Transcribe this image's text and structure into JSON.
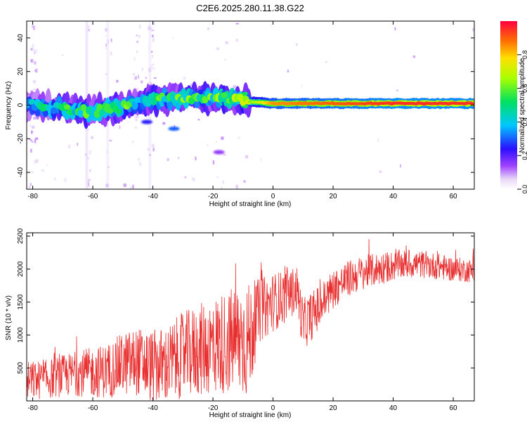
{
  "title": "C2E6.2025.280.11.38.G22",
  "chart_data": [
    {
      "type": "heatmap",
      "xlabel": "Height of straight line (km)",
      "ylabel": "Frequency (Hz)",
      "xlim": [
        -82,
        67
      ],
      "ylim": [
        -50,
        50
      ],
      "xticks": [
        -80,
        -60,
        -40,
        -20,
        0,
        20,
        40,
        60
      ],
      "yticks": [
        -40,
        -20,
        0,
        20,
        40
      ],
      "colorbar": {
        "label": "Normalized spectral amplitude",
        "range": [
          0,
          1
        ],
        "ticks": [
          "0.0",
          "0.2",
          "0.4",
          "0.6",
          "0.8"
        ]
      },
      "ridge": {
        "description_points": [
          {
            "x": -80,
            "freq": 0,
            "amp": 0.4
          },
          {
            "x": -60,
            "freq": -4,
            "amp": 0.5
          },
          {
            "x": -40,
            "freq": 3,
            "amp": 0.5
          },
          {
            "x": -20,
            "freq": 5,
            "amp": 0.5
          },
          {
            "x": -8,
            "freq": 2,
            "amp": 0.6
          },
          {
            "x": 0,
            "freq": 1,
            "amp": 0.85
          },
          {
            "x": 20,
            "freq": 1,
            "amp": 0.9
          },
          {
            "x": 40,
            "freq": 1,
            "amp": 0.95
          },
          {
            "x": 66,
            "freq": 1,
            "amp": 0.95
          }
        ],
        "secondary_tail": [
          {
            "x": -42,
            "freq": -10,
            "amp": 0.25
          },
          {
            "x": -33,
            "freq": -14,
            "amp": 0.3
          },
          {
            "x": -18,
            "freq": -28,
            "amp": 0.15
          }
        ]
      }
    },
    {
      "type": "line",
      "xlabel": "Height of straight line (km)",
      "ylabel": "SNR (10 * v/v)",
      "xlim": [
        -82,
        67
      ],
      "ylim": [
        0,
        2550
      ],
      "xticks": [
        -80,
        -60,
        -40,
        -20,
        0,
        20,
        40,
        60
      ],
      "yticks": [
        500,
        1000,
        1500,
        2000,
        2500
      ],
      "series": [
        {
          "name": "SNR",
          "color": "#e83030",
          "x": [
            -82,
            -75,
            -70,
            -65,
            -60,
            -55,
            -50,
            -45,
            -40,
            -35,
            -30,
            -25,
            -20,
            -15,
            -10,
            -8,
            -5,
            0,
            5,
            8,
            10,
            15,
            20,
            25,
            30,
            35,
            40,
            45,
            50,
            55,
            60,
            65,
            67
          ],
          "y": [
            300,
            330,
            380,
            420,
            430,
            460,
            560,
            600,
            520,
            550,
            700,
            760,
            840,
            900,
            950,
            900,
            1350,
            1500,
            1600,
            1700,
            1150,
            1400,
            1700,
            1850,
            1950,
            2000,
            2050,
            2080,
            2070,
            2040,
            2000,
            1980,
            1960
          ],
          "noise_amplitude": [
            300,
            300,
            320,
            350,
            380,
            420,
            480,
            520,
            560,
            600,
            650,
            700,
            750,
            800,
            900,
            900,
            500,
            450,
            400,
            350,
            400,
            350,
            300,
            280,
            260,
            250,
            230,
            220,
            210,
            200,
            190,
            180,
            180
          ]
        }
      ]
    }
  ]
}
